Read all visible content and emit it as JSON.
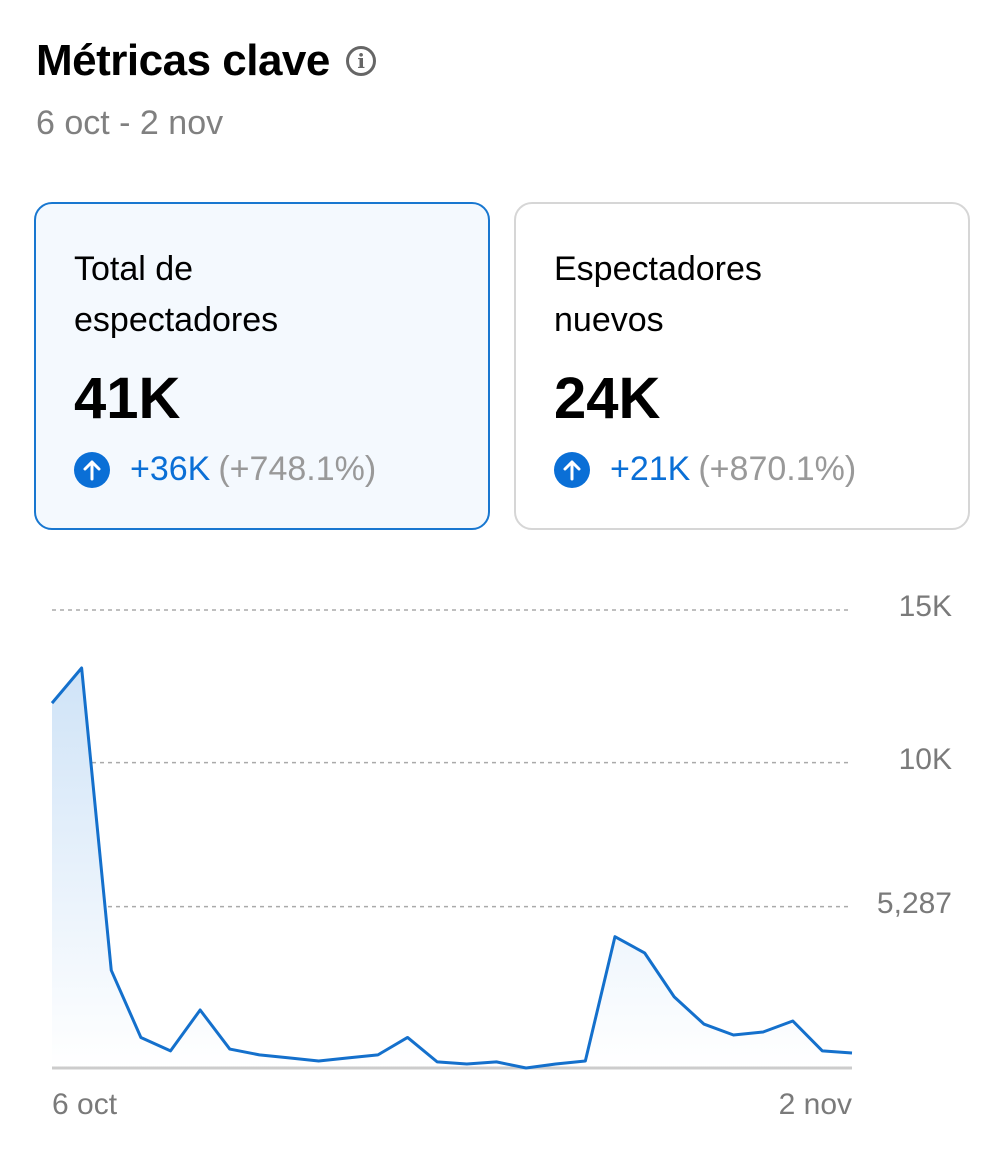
{
  "header": {
    "title": "Métricas clave",
    "info_icon": "info-icon",
    "date_range": "6 oct - 2 nov"
  },
  "cards": [
    {
      "label": "Total de espectadores",
      "value": "41K",
      "delta": "+36K",
      "delta_pct": "(+748.1%)",
      "selected": true,
      "icon": "arrow-up-circle-icon"
    },
    {
      "label": "Espectadores nuevos",
      "value": "24K",
      "delta": "+21K",
      "delta_pct": "(+870.1%)",
      "selected": false,
      "icon": "arrow-up-circle-icon"
    }
  ],
  "colors": {
    "accent": "#0a6fd6",
    "line": "#1470cc",
    "selected_bg": "#f4f9fe"
  },
  "chart_data": {
    "type": "area",
    "x_tick_labels": [
      "6 oct",
      "2 nov"
    ],
    "y_tick_labels": [
      "15K",
      "10K",
      "5,287"
    ],
    "y_ticks": [
      15000,
      10000,
      5287
    ],
    "ylim": [
      0,
      15000
    ],
    "grid": true,
    "values": [
      11950,
      13100,
      3200,
      1000,
      560,
      1900,
      620,
      430,
      330,
      230,
      330,
      430,
      1000,
      200,
      130,
      200,
      0,
      130,
      230,
      4300,
      3770,
      2330,
      1440,
      1080,
      1180,
      1540,
      560,
      490
    ]
  }
}
